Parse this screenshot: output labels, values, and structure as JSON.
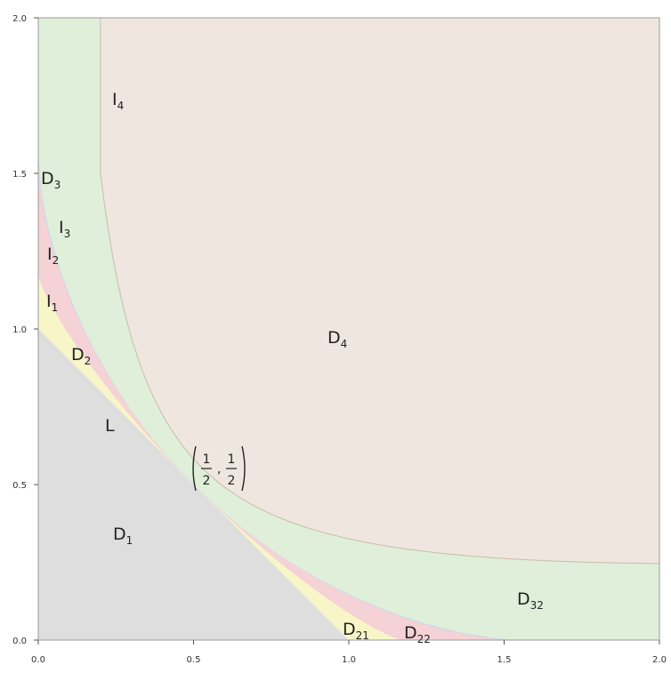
{
  "axes": {
    "x_ticks": [
      "0.0",
      "0.5",
      "1.0",
      "1.5",
      "2.0"
    ],
    "y_ticks": [
      "0.0",
      "0.5",
      "1.0",
      "1.5",
      "2.0"
    ]
  },
  "colors": {
    "D1": "#dedede",
    "D2": "#f8f6c8",
    "I2": "#f5d2d6",
    "I3": "#c8d8ec",
    "D3": "#dfefd9",
    "D4": "#efe7df",
    "frame": "#9a9a9a"
  },
  "region_labels": [
    {
      "base": "I",
      "sub": "4"
    },
    {
      "base": "D",
      "sub": "3"
    },
    {
      "base": "I",
      "sub": "3"
    },
    {
      "base": "I",
      "sub": "2"
    },
    {
      "base": "I",
      "sub": "1"
    },
    {
      "base": "D",
      "sub": "2"
    },
    {
      "base": "L",
      "sub": ""
    },
    {
      "base": "D",
      "sub": "1"
    },
    {
      "base": "D",
      "sub": "4"
    },
    {
      "base": "D",
      "sub": "32"
    },
    {
      "base": "D",
      "sub": "21"
    },
    {
      "base": "D",
      "sub": "22"
    }
  ],
  "point": {
    "x_num": "1",
    "x_den": "2",
    "y_num": "1",
    "y_den": "2"
  }
}
